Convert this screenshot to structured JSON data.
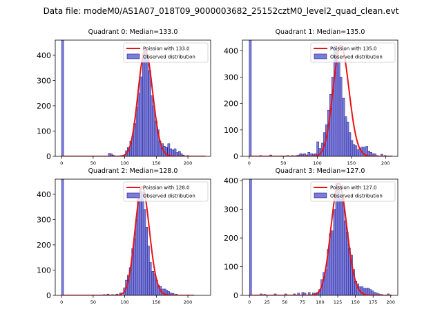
{
  "colors": {
    "bar_fill": "#7b7bdb",
    "bar_edge": "#1a1a80",
    "curve": "#ee1111"
  },
  "figure_title": "Data file: modeM0/AS1A07_018T09_9000003682_25152cztM0_level2_quad_clean.evt",
  "chart_data": [
    {
      "type": "bar",
      "title": "Quadrant 0: Median=133.0",
      "legend": {
        "curve": "Poission with 133.0",
        "bars": "Observed distribution",
        "placement": "top-right"
      },
      "xlim": [
        -10,
        236
      ],
      "ylim": [
        0,
        460
      ],
      "xticks": [
        0,
        50,
        100,
        150,
        200
      ],
      "yticks": [
        0,
        100,
        200,
        300,
        400
      ],
      "bin_width": 3.4,
      "mean": 133.0,
      "bins": [
        [
          0,
          460
        ],
        [
          74,
          12
        ],
        [
          77,
          10
        ],
        [
          80,
          5
        ],
        [
          93,
          3
        ],
        [
          97,
          5
        ],
        [
          101,
          22
        ],
        [
          104,
          35
        ],
        [
          108,
          60
        ],
        [
          111,
          80
        ],
        [
          114,
          130
        ],
        [
          118,
          195
        ],
        [
          121,
          250
        ],
        [
          124,
          315
        ],
        [
          128,
          390
        ],
        [
          131,
          420
        ],
        [
          134,
          395
        ],
        [
          138,
          340
        ],
        [
          141,
          240
        ],
        [
          144,
          200
        ],
        [
          148,
          140
        ],
        [
          151,
          105
        ],
        [
          154,
          60
        ],
        [
          158,
          50
        ],
        [
          161,
          40
        ],
        [
          164,
          35
        ],
        [
          168,
          50
        ],
        [
          171,
          30
        ],
        [
          174,
          25
        ],
        [
          178,
          30
        ],
        [
          181,
          15
        ],
        [
          185,
          20
        ],
        [
          188,
          10
        ],
        [
          191,
          5
        ],
        [
          198,
          3
        ]
      ]
    },
    {
      "type": "bar",
      "title": "Quadrant 1: Median=135.0",
      "legend": {
        "curve": "Poission with 135.0",
        "bars": "Observed distribution",
        "placement": "top-right"
      },
      "xlim": [
        -10,
        218
      ],
      "ylim": [
        0,
        440
      ],
      "xticks": [
        0,
        50,
        100,
        150,
        200
      ],
      "yticks": [
        0,
        100,
        200,
        300,
        400
      ],
      "bin_width": 3.1,
      "mean": 135.0,
      "bins": [
        [
          0,
          440
        ],
        [
          15,
          3
        ],
        [
          30,
          5
        ],
        [
          55,
          3
        ],
        [
          62,
          3
        ],
        [
          68,
          3
        ],
        [
          71,
          5
        ],
        [
          74,
          10
        ],
        [
          77,
          8
        ],
        [
          80,
          10
        ],
        [
          83,
          5
        ],
        [
          86,
          15
        ],
        [
          90,
          10
        ],
        [
          93,
          8
        ],
        [
          96,
          10
        ],
        [
          99,
          55
        ],
        [
          102,
          30
        ],
        [
          106,
          50
        ],
        [
          109,
          90
        ],
        [
          112,
          120
        ],
        [
          115,
          175
        ],
        [
          118,
          235
        ],
        [
          121,
          300
        ],
        [
          124,
          420
        ],
        [
          127,
          400
        ],
        [
          130,
          360
        ],
        [
          133,
          300
        ],
        [
          137,
          220
        ],
        [
          140,
          150
        ],
        [
          143,
          130
        ],
        [
          146,
          90
        ],
        [
          149,
          60
        ],
        [
          152,
          45
        ],
        [
          155,
          40
        ],
        [
          158,
          25
        ],
        [
          161,
          30
        ],
        [
          164,
          35
        ],
        [
          167,
          35
        ],
        [
          171,
          38
        ],
        [
          174,
          20
        ],
        [
          177,
          15
        ],
        [
          180,
          10
        ],
        [
          183,
          10
        ],
        [
          186,
          3
        ],
        [
          193,
          8
        ],
        [
          198,
          3
        ]
      ]
    },
    {
      "type": "bar",
      "title": "Quadrant 2: Median=128.0",
      "legend": {
        "curve": "Poission with 128.0",
        "bars": "Observed distribution",
        "placement": "top-right"
      },
      "xlim": [
        -10,
        236
      ],
      "ylim": [
        0,
        460
      ],
      "xticks": [
        0,
        50,
        100,
        150,
        200
      ],
      "yticks": [
        0,
        100,
        200,
        300,
        400
      ],
      "bin_width": 3.2,
      "mean": 128.0,
      "bins": [
        [
          0,
          460
        ],
        [
          66,
          3
        ],
        [
          72,
          5
        ],
        [
          79,
          3
        ],
        [
          86,
          5
        ],
        [
          92,
          10
        ],
        [
          98,
          30
        ],
        [
          101,
          60
        ],
        [
          104,
          80
        ],
        [
          107,
          110
        ],
        [
          111,
          185
        ],
        [
          114,
          225
        ],
        [
          117,
          300
        ],
        [
          120,
          380
        ],
        [
          123,
          430
        ],
        [
          127,
          410
        ],
        [
          130,
          340
        ],
        [
          133,
          270
        ],
        [
          136,
          195
        ],
        [
          139,
          130
        ],
        [
          143,
          95
        ],
        [
          146,
          85
        ],
        [
          149,
          60
        ],
        [
          152,
          40
        ],
        [
          155,
          35
        ],
        [
          159,
          25
        ],
        [
          162,
          25
        ],
        [
          165,
          20
        ],
        [
          168,
          15
        ],
        [
          171,
          10
        ],
        [
          175,
          8
        ],
        [
          180,
          5
        ]
      ]
    },
    {
      "type": "bar",
      "title": "Quadrant 3: Median=127.0",
      "legend": {
        "curve": "Poission with 127.0",
        "bars": "Observed distribution",
        "placement": "top-right"
      },
      "xlim": [
        -10,
        210
      ],
      "ylim": [
        0,
        405
      ],
      "xticks": [
        0,
        25,
        50,
        75,
        100,
        125,
        150,
        175,
        200
      ],
      "yticks": [
        0,
        100,
        200,
        300,
        400
      ],
      "bin_width": 3.0,
      "mean": 127.0,
      "bins": [
        [
          0,
          405
        ],
        [
          15,
          5
        ],
        [
          20,
          3
        ],
        [
          35,
          5
        ],
        [
          50,
          5
        ],
        [
          62,
          5
        ],
        [
          68,
          8
        ],
        [
          74,
          10
        ],
        [
          77,
          8
        ],
        [
          83,
          10
        ],
        [
          89,
          8
        ],
        [
          92,
          8
        ],
        [
          95,
          10
        ],
        [
          98,
          20
        ],
        [
          101,
          55
        ],
        [
          104,
          80
        ],
        [
          107,
          90
        ],
        [
          110,
          160
        ],
        [
          113,
          215
        ],
        [
          116,
          225
        ],
        [
          119,
          300
        ],
        [
          122,
          390
        ],
        [
          125,
          380
        ],
        [
          128,
          335
        ],
        [
          131,
          345
        ],
        [
          134,
          260
        ],
        [
          137,
          220
        ],
        [
          140,
          165
        ],
        [
          143,
          140
        ],
        [
          146,
          90
        ],
        [
          149,
          50
        ],
        [
          152,
          40
        ],
        [
          155,
          30
        ],
        [
          158,
          30
        ],
        [
          161,
          25
        ],
        [
          164,
          25
        ],
        [
          167,
          25
        ],
        [
          170,
          20
        ],
        [
          173,
          15
        ],
        [
          176,
          10
        ],
        [
          179,
          8
        ],
        [
          182,
          5
        ],
        [
          186,
          3
        ],
        [
          195,
          5
        ]
      ]
    }
  ]
}
